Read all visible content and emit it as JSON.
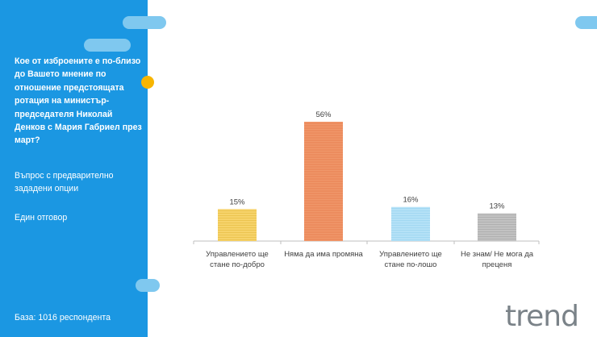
{
  "sidebar": {
    "question": "Кое от изброените е по-близо до Вашето мнение по отношение предстоящата ротация на министър-председателя Николай Денков с Мария Габриел през март?",
    "option_note": "Въпрос с предварително зададени опции",
    "answer_note": "Един отговор",
    "base": "База:  1016 респондента"
  },
  "logo": {
    "text": "trend"
  },
  "colors": {
    "sidebar": "#1b97e2",
    "accent_dot": "#f7b500",
    "pill": "#7fc8ef"
  },
  "chart_data": {
    "type": "bar",
    "categories": [
      [
        "Управлението ще",
        "стане по-добро"
      ],
      [
        "Няма да има промяна"
      ],
      [
        "Управлението ще",
        "стане по-лошо"
      ],
      [
        "Не знам/ Не мога да",
        "преценя"
      ]
    ],
    "values": [
      15,
      56,
      16,
      13
    ],
    "value_labels": [
      "15%",
      "56%",
      "16%",
      "13%"
    ],
    "bar_colors": [
      "#f6d36b",
      "#f0976a",
      "#b6e2f7",
      "#c2c2c2"
    ],
    "line_colors": [
      "#e8bf48",
      "#e57a4c",
      "#97d1ef",
      "#a9a9a9"
    ],
    "grid": false
  }
}
